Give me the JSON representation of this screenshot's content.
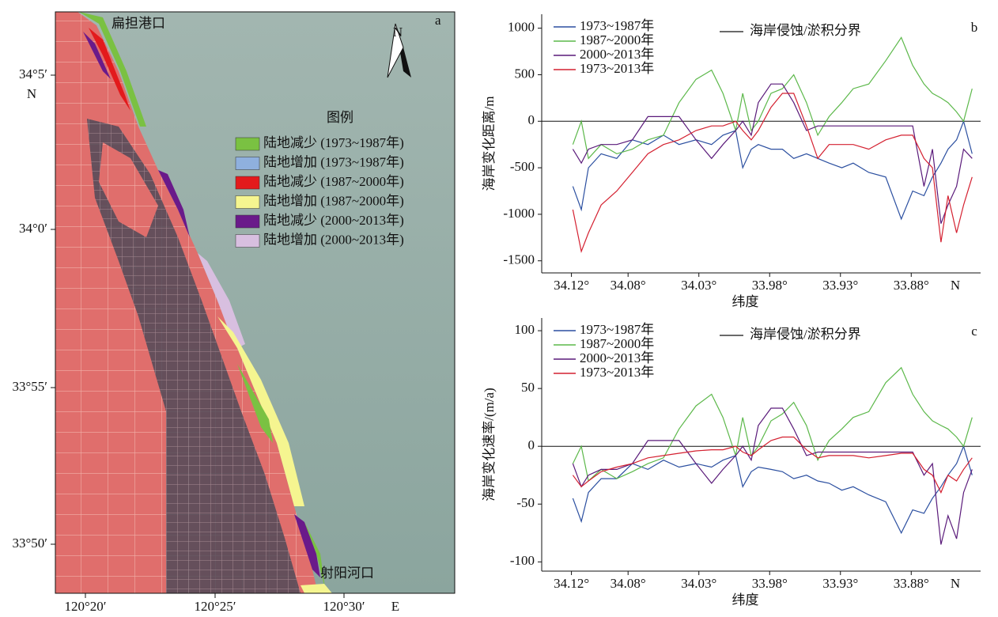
{
  "map": {
    "label": "a",
    "places": [
      "扁担港口",
      "射阳河口"
    ],
    "north": "N",
    "legend_title": "图例",
    "legend": [
      {
        "label": "陆地减少 (1973~1987年)",
        "color": "#7ac142"
      },
      {
        "label": "陆地增加 (1973~1987年)",
        "color": "#8fb0de"
      },
      {
        "label": "陆地减少 (1987~2000年)",
        "color": "#e31a1c"
      },
      {
        "label": "陆地增加 (1987~2000年)",
        "color": "#f5f590"
      },
      {
        "label": "陆地减少 (2000~2013年)",
        "color": "#6a1a8a"
      },
      {
        "label": "陆地增加 (2000~2013年)",
        "color": "#d8bfe0"
      }
    ],
    "yticks": [
      "34°5′",
      "34°0′",
      "33°55′",
      "33°50′"
    ],
    "yunit": "N",
    "xticks": [
      "120°20′",
      "120°25′",
      "120°30′"
    ],
    "xunit": "E"
  },
  "chart_data": [
    {
      "type": "line",
      "label": "b",
      "ylabel": "海岸变化距离/m",
      "xlabel": "纬度",
      "xunit": "N",
      "boundary_label": "海岸侵蚀/淤积分界",
      "x": [
        34.119,
        34.113,
        34.108,
        34.099,
        34.088,
        34.077,
        34.066,
        34.055,
        34.044,
        34.032,
        34.021,
        34.013,
        34.004,
        33.999,
        33.993,
        33.988,
        33.979,
        33.971,
        33.963,
        33.954,
        33.946,
        33.938,
        33.929,
        33.921,
        33.91,
        33.898,
        33.887,
        33.879,
        33.871,
        33.865,
        33.859,
        33.854,
        33.848,
        33.843,
        33.837
      ],
      "xlim": [
        34.141,
        33.831
      ],
      "xticks": [
        {
          "value": 34.12,
          "label": "34.12°"
        },
        {
          "value": 34.08,
          "label": "34.08°"
        },
        {
          "value": 34.03,
          "label": "34.03°"
        },
        {
          "value": 33.98,
          "label": "33.98°"
        },
        {
          "value": 33.93,
          "label": "33.93°"
        },
        {
          "value": 33.88,
          "label": "33.88°"
        }
      ],
      "ylim": [
        -1630,
        1150
      ],
      "yticks": [
        -1500,
        -1000,
        -500,
        0,
        500,
        1000
      ],
      "series": [
        {
          "name": "1973~1987年",
          "color": "#2b4fa0",
          "values": [
            -700,
            -950,
            -500,
            -350,
            -400,
            -200,
            -250,
            -150,
            -250,
            -200,
            -250,
            -150,
            -100,
            -500,
            -300,
            -250,
            -300,
            -300,
            -400,
            -350,
            -400,
            -450,
            -500,
            -450,
            -550,
            -600,
            -1050,
            -750,
            -800,
            -600,
            -450,
            -300,
            -200,
            0,
            -350
          ]
        },
        {
          "name": "1987~2000年",
          "color": "#5cb84a",
          "values": [
            -250,
            0,
            -400,
            -250,
            -350,
            -300,
            -200,
            -150,
            200,
            450,
            550,
            300,
            -100,
            300,
            -100,
            0,
            300,
            350,
            500,
            200,
            -150,
            50,
            200,
            350,
            400,
            650,
            900,
            600,
            400,
            300,
            250,
            200,
            100,
            0,
            350
          ]
        },
        {
          "name": "2000~2013年",
          "color": "#5a1a7a",
          "values": [
            -300,
            -450,
            -300,
            -250,
            -250,
            -200,
            50,
            50,
            50,
            -200,
            -400,
            -250,
            -100,
            0,
            -150,
            200,
            400,
            400,
            200,
            -100,
            -50,
            -50,
            -50,
            -50,
            -50,
            -50,
            -50,
            -50,
            -700,
            -300,
            -1100,
            -900,
            -700,
            -300,
            -400
          ]
        },
        {
          "name": "1973~2013年",
          "color": "#d42030",
          "values": [
            -950,
            -1400,
            -1200,
            -900,
            -750,
            -550,
            -350,
            -250,
            -200,
            -100,
            -50,
            -50,
            0,
            -100,
            -200,
            -100,
            150,
            300,
            300,
            -50,
            -400,
            -250,
            -250,
            -250,
            -300,
            -200,
            -150,
            -150,
            -400,
            -500,
            -1300,
            -800,
            -1200,
            -900,
            -600
          ]
        }
      ]
    },
    {
      "type": "line",
      "label": "c",
      "ylabel": "海岸变化速率/(m/a)",
      "xlabel": "纬度",
      "xunit": "N",
      "boundary_label": "海岸侵蚀/淤积分界",
      "x": [
        34.119,
        34.113,
        34.108,
        34.099,
        34.088,
        34.077,
        34.066,
        34.055,
        34.044,
        34.032,
        34.021,
        34.013,
        34.004,
        33.999,
        33.993,
        33.988,
        33.979,
        33.971,
        33.963,
        33.954,
        33.946,
        33.938,
        33.929,
        33.921,
        33.91,
        33.898,
        33.887,
        33.879,
        33.871,
        33.865,
        33.859,
        33.854,
        33.848,
        33.843,
        33.837
      ],
      "xlim": [
        34.141,
        33.831
      ],
      "xticks": [
        {
          "value": 34.12,
          "label": "34.12°"
        },
        {
          "value": 34.08,
          "label": "34.08°"
        },
        {
          "value": 34.03,
          "label": "34.03°"
        },
        {
          "value": 33.98,
          "label": "33.98°"
        },
        {
          "value": 33.93,
          "label": "33.93°"
        },
        {
          "value": 33.88,
          "label": "33.88°"
        }
      ],
      "ylim": [
        -108,
        111
      ],
      "yticks": [
        -100,
        -50,
        0,
        50,
        100
      ],
      "series": [
        {
          "name": "1973~1987年",
          "color": "#2b4fa0",
          "values": [
            -45,
            -65,
            -40,
            -28,
            -28,
            -15,
            -20,
            -12,
            -18,
            -15,
            -18,
            -12,
            -8,
            -35,
            -22,
            -18,
            -20,
            -22,
            -28,
            -25,
            -30,
            -32,
            -38,
            -35,
            -42,
            -48,
            -75,
            -55,
            -58,
            -45,
            -35,
            -25,
            -15,
            0,
            -25
          ]
        },
        {
          "name": "1987~2000年",
          "color": "#5cb84a",
          "values": [
            -15,
            0,
            -30,
            -20,
            -28,
            -22,
            -15,
            -10,
            15,
            35,
            45,
            25,
            -8,
            25,
            -8,
            0,
            22,
            28,
            38,
            18,
            -12,
            5,
            15,
            25,
            30,
            55,
            68,
            45,
            30,
            22,
            18,
            15,
            8,
            0,
            25
          ]
        },
        {
          "name": "2000~2013年",
          "color": "#5a1a7a",
          "values": [
            -15,
            -35,
            -25,
            -20,
            -20,
            -15,
            5,
            5,
            5,
            -15,
            -32,
            -20,
            -8,
            0,
            -12,
            18,
            33,
            33,
            15,
            -8,
            -5,
            -5,
            -5,
            -5,
            -5,
            -5,
            -5,
            -5,
            -25,
            -15,
            -85,
            -60,
            -80,
            -40,
            -20
          ]
        },
        {
          "name": "1973~2013年",
          "color": "#d42030",
          "values": [
            -25,
            -35,
            -30,
            -22,
            -18,
            -15,
            -10,
            -8,
            -6,
            -4,
            -3,
            -3,
            0,
            -5,
            -8,
            -3,
            5,
            8,
            8,
            -3,
            -10,
            -8,
            -8,
            -8,
            -10,
            -8,
            -6,
            -6,
            -20,
            -25,
            -40,
            -25,
            -30,
            -20,
            -10
          ]
        }
      ]
    }
  ]
}
